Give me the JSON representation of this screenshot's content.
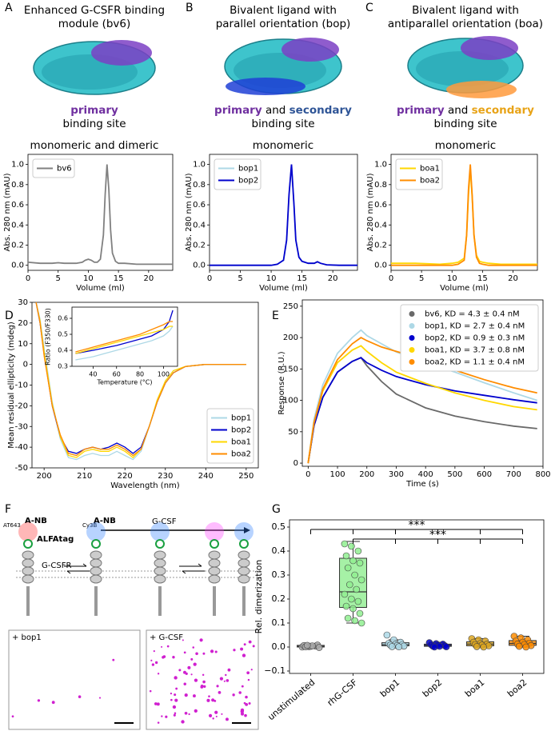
{
  "panel_letters": [
    "A",
    "B",
    "C",
    "D",
    "E",
    "F",
    "G"
  ],
  "chart_data": [
    {
      "type": "line",
      "header": [
        "Enhanced G-CSFR binding",
        "module (bv6)"
      ],
      "site_label": [
        [
          {
            "text": "primary",
            "color": "#7030a0"
          }
        ],
        [
          {
            "text": "binding site"
          }
        ]
      ],
      "title": "monomeric and dimeric",
      "xlabel": "Volume (ml)",
      "ylabel": "Abs. 280 nm (mAU)",
      "x": [
        0,
        2,
        4,
        5,
        6,
        8,
        9,
        9.5,
        10,
        10.5,
        11,
        11.5,
        12,
        12.5,
        12.8,
        13.1,
        13.4,
        13.7,
        14,
        14.5,
        15,
        16,
        18,
        20,
        22,
        24
      ],
      "series": [
        {
          "name": "bv6",
          "color": "#808080",
          "values": [
            0.03,
            0.02,
            0.02,
            0.025,
            0.02,
            0.02,
            0.03,
            0.05,
            0.06,
            0.05,
            0.03,
            0.03,
            0.06,
            0.3,
            0.7,
            1.0,
            0.75,
            0.35,
            0.12,
            0.04,
            0.02,
            0.02,
            0.01,
            0.01,
            0.01,
            0.01
          ]
        }
      ],
      "xlim": [
        0,
        24
      ],
      "ylim": [
        -0.05,
        1.1
      ],
      "xticks": [
        0,
        5,
        10,
        15,
        20
      ],
      "yticks": [
        {
          "value": 0,
          "label": "0.0"
        },
        0.2,
        0.4,
        0.6,
        0.8,
        {
          "value": 1,
          "label": "1.0"
        }
      ],
      "legend": "upper left"
    },
    {
      "type": "line",
      "header": [
        "Bivalent ligand with",
        "parallel orientation (bop)"
      ],
      "site_label": [
        [
          {
            "text": "primary",
            "color": "#7030a0"
          },
          {
            "text": "and"
          },
          {
            "text": "secondary",
            "color": "#2f5597"
          }
        ],
        [
          {
            "text": "binding site"
          }
        ]
      ],
      "title": "monomeric",
      "xlabel": "Volume (ml)",
      "ylabel": "Abs. 280 nm (mAU)",
      "x": [
        0,
        4,
        8,
        10,
        11,
        12,
        12.5,
        12.9,
        13.3,
        13.7,
        14,
        14.5,
        15,
        16,
        17,
        17.5,
        18,
        19,
        21,
        24
      ],
      "series": [
        {
          "name": "bop1",
          "color": "#add8e6",
          "values": [
            0,
            0,
            0,
            0,
            0.01,
            0.05,
            0.24,
            0.69,
            0.99,
            0.6,
            0.25,
            0.08,
            0.04,
            0.02,
            0.02,
            0.035,
            0.02,
            0.005,
            0,
            0
          ]
        },
        {
          "name": "bop2",
          "color": "#0000cd",
          "values": [
            0,
            0,
            0,
            0,
            0.01,
            0.05,
            0.25,
            0.7,
            1.0,
            0.6,
            0.25,
            0.08,
            0.04,
            0.02,
            0.02,
            0.035,
            0.02,
            0.005,
            0,
            0
          ]
        }
      ],
      "xlim": [
        0,
        24
      ],
      "ylim": [
        -0.05,
        1.1
      ],
      "xticks": [
        0,
        5,
        10,
        15,
        20
      ],
      "yticks": [
        {
          "value": 0,
          "label": "0.0"
        },
        0.2,
        0.4,
        0.6,
        0.8,
        {
          "value": 1,
          "label": "1.0"
        }
      ],
      "legend": "upper left"
    },
    {
      "type": "line",
      "header": [
        "Bivalent ligand with",
        "antiparallel orientation (boa)"
      ],
      "site_label": [
        [
          {
            "text": "primary",
            "color": "#7030a0"
          },
          {
            "text": "and"
          },
          {
            "text": "secondary",
            "color": "#e8a317"
          }
        ],
        [
          {
            "text": "binding site"
          }
        ]
      ],
      "title": "monomeric",
      "xlabel": "Volume (ml)",
      "ylabel": "Abs. 280 nm (mAU)",
      "x": [
        0,
        4,
        8,
        10,
        11,
        12,
        12.4,
        12.7,
        13,
        13.3,
        13.6,
        14,
        14.5,
        15,
        16,
        18,
        24
      ],
      "series": [
        {
          "name": "boa1",
          "color": "#ffd700",
          "values": [
            0.02,
            0.02,
            0.01,
            0.02,
            0.03,
            0.07,
            0.3,
            0.7,
            0.96,
            0.68,
            0.3,
            0.1,
            0.04,
            0.03,
            0.02,
            0.01,
            0.01
          ]
        },
        {
          "name": "boa2",
          "color": "#ff8c00",
          "values": [
            0,
            0,
            0,
            0,
            0.01,
            0.05,
            0.3,
            0.75,
            1.0,
            0.7,
            0.3,
            0.08,
            0.02,
            0.01,
            0,
            0,
            0
          ]
        }
      ],
      "xlim": [
        0,
        24
      ],
      "ylim": [
        -0.05,
        1.1
      ],
      "xticks": [
        0,
        5,
        10,
        15,
        20
      ],
      "yticks": [
        {
          "value": 0,
          "label": "0.0"
        },
        0.2,
        0.4,
        0.6,
        0.8,
        {
          "value": 1,
          "label": "1.0"
        }
      ],
      "legend": "upper left"
    },
    {
      "type": "line",
      "xlabel": "Wavelength (nm)",
      "ylabel": "Mean residual ellipticity (mdeg)",
      "x": [
        198,
        199,
        200,
        202,
        204,
        206,
        208,
        210,
        212,
        214,
        216,
        218,
        220,
        222,
        224,
        226,
        228,
        230,
        232,
        235,
        240,
        245,
        250
      ],
      "series": [
        {
          "name": "bop1",
          "color": "#add8e6",
          "values": [
            30,
            22,
            8,
            -18,
            -36,
            -45,
            -46,
            -44,
            -43,
            -44,
            -44,
            -42,
            -44,
            -46,
            -42,
            -30,
            -17,
            -8,
            -3,
            -1,
            0,
            0,
            0
          ]
        },
        {
          "name": "bop2",
          "color": "#0000cd",
          "values": [
            30,
            20,
            5,
            -20,
            -35,
            -42,
            -43,
            -41,
            -40,
            -41,
            -40,
            -38,
            -40,
            -43,
            -40,
            -30,
            -18,
            -9,
            -4,
            -1,
            0,
            0,
            0
          ]
        },
        {
          "name": "boa1",
          "color": "#ffd700",
          "values": [
            30,
            21,
            6,
            -19,
            -35,
            -44,
            -45,
            -42,
            -41,
            -42,
            -42,
            -40,
            -42,
            -45,
            -41,
            -30,
            -17,
            -8,
            -3,
            -1,
            0,
            0,
            0
          ]
        },
        {
          "name": "boa2",
          "color": "#ff8c00",
          "values": [
            30,
            20,
            4,
            -20,
            -34,
            -43,
            -44,
            -41,
            -40,
            -41,
            -41,
            -39,
            -41,
            -44,
            -41,
            -30,
            -18,
            -9,
            -4,
            -1,
            0,
            0,
            0
          ]
        }
      ],
      "xlim": [
        197,
        253
      ],
      "ylim": [
        -50,
        30
      ],
      "xticks": [
        200,
        210,
        220,
        230,
        240,
        250
      ],
      "yticks": [
        -50,
        -40,
        -30,
        -20,
        -10,
        0,
        10,
        20,
        30
      ],
      "legend": "lower right"
    },
    {
      "type": "line",
      "xlabel": "Temperature (°C)",
      "ylabel": "Ratio (F350/F330)",
      "x": [
        25,
        40,
        60,
        80,
        90,
        100,
        105,
        108
      ],
      "series": [
        {
          "name": "bop1",
          "color": "#add8e6",
          "values": [
            0.34,
            0.36,
            0.4,
            0.44,
            0.46,
            0.49,
            0.52,
            0.55
          ]
        },
        {
          "name": "bop2",
          "color": "#0000cd",
          "values": [
            0.38,
            0.4,
            0.43,
            0.47,
            0.49,
            0.53,
            0.58,
            0.65
          ]
        },
        {
          "name": "boa1",
          "color": "#ffd700",
          "values": [
            0.38,
            0.41,
            0.45,
            0.49,
            0.51,
            0.53,
            0.55,
            0.55
          ]
        },
        {
          "name": "boa2",
          "color": "#ff8c00",
          "values": [
            0.39,
            0.42,
            0.46,
            0.5,
            0.53,
            0.56,
            0.58,
            0.58
          ]
        }
      ],
      "xlim": [
        22,
        112
      ],
      "ylim": [
        0.3,
        0.67
      ],
      "xticks": [
        40,
        60,
        80,
        100
      ],
      "yticks": [
        0.3,
        0.4,
        0.5,
        0.6
      ]
    },
    {
      "type": "line",
      "xlabel": "Time (s)",
      "ylabel": "Response (R.U.)",
      "x": [
        0,
        20,
        50,
        100,
        150,
        180,
        200,
        250,
        300,
        400,
        500,
        600,
        700,
        780
      ],
      "series": [
        {
          "name": "bv6, KD = 4.3 ± 0.4 nM",
          "color": "#696969",
          "values": [
            0,
            60,
            105,
            145,
            162,
            168,
            155,
            130,
            110,
            88,
            75,
            66,
            59,
            55
          ]
        },
        {
          "name": "bop1, KD = 2.7 ± 0.4 nM",
          "color": "#add8e6",
          "values": [
            0,
            70,
            125,
            175,
            200,
            212,
            203,
            190,
            177,
            160,
            145,
            128,
            112,
            100
          ]
        },
        {
          "name": "bop2, KD = 0.9 ± 0.3 nM",
          "color": "#0000cd",
          "values": [
            0,
            60,
            105,
            145,
            162,
            168,
            160,
            148,
            138,
            125,
            115,
            108,
            101,
            96
          ]
        },
        {
          "name": "boa1, KD = 3.7 ± 0.8 nM",
          "color": "#ffd700",
          "values": [
            0,
            65,
            115,
            160,
            180,
            187,
            178,
            160,
            145,
            127,
            112,
            100,
            90,
            85
          ]
        },
        {
          "name": "boa2, KD = 1.1 ± 0.4 nM",
          "color": "#ff8c00",
          "values": [
            0,
            65,
            118,
            165,
            190,
            200,
            195,
            185,
            178,
            165,
            148,
            133,
            120,
            112
          ]
        }
      ],
      "xlim": [
        -20,
        800
      ],
      "ylim": [
        -5,
        260
      ],
      "xticks": [
        0,
        100,
        200,
        300,
        400,
        500,
        600,
        700,
        800
      ],
      "yticks": [
        0,
        50,
        100,
        150,
        200,
        250
      ],
      "legend": "upper right",
      "legend_marker": "circle"
    },
    {
      "type": "box",
      "ylabel": "Rel. dimerization",
      "categories": [
        "unstimulated",
        "rhG-CSF",
        "bop1",
        "bop2",
        "boa1",
        "boa2"
      ],
      "boxes": [
        {
          "color": "#a9a9a9",
          "whislo": -0.005,
          "q1": 0,
          "median": 0.003,
          "q3": 0.007,
          "whishi": 0.01,
          "points": [
            0.0,
            0.002,
            0.004,
            0.006,
            0.003,
            0.008,
            0.001,
            0.005,
            -0.002,
            0.007
          ]
        },
        {
          "color": "#90ee90",
          "whislo": 0.1,
          "q1": 0.165,
          "median": 0.23,
          "q3": 0.37,
          "whishi": 0.44,
          "points": [
            0.43,
            0.42,
            0.4,
            0.38,
            0.36,
            0.35,
            0.33,
            0.3,
            0.28,
            0.26,
            0.24,
            0.22,
            0.2,
            0.19,
            0.17,
            0.16,
            0.14,
            0.12,
            0.11,
            0.1
          ]
        },
        {
          "color": "#add8e6",
          "whislo": 0,
          "q1": 0.005,
          "median": 0.01,
          "q3": 0.018,
          "whishi": 0.03,
          "points": [
            0.05,
            0.03,
            0.02,
            0.015,
            0.012,
            0.01,
            0.008,
            0.006,
            0.004,
            0.002,
            0.001
          ]
        },
        {
          "color": "#0000cd",
          "whislo": 0,
          "q1": 0.003,
          "median": 0.007,
          "q3": 0.012,
          "whishi": 0.02,
          "points": [
            0.018,
            0.014,
            0.012,
            0.01,
            0.008,
            0.006,
            0.004,
            0.003,
            0.001,
            0.0
          ]
        },
        {
          "color": "#daa520",
          "whislo": 0,
          "q1": 0.005,
          "median": 0.012,
          "q3": 0.022,
          "whishi": 0.035,
          "points": [
            0.035,
            0.03,
            0.025,
            0.02,
            0.015,
            0.012,
            0.01,
            0.008,
            0.005,
            0.002,
            0.0
          ]
        },
        {
          "color": "#ff8c00",
          "whislo": 0,
          "q1": 0.007,
          "median": 0.015,
          "q3": 0.027,
          "whishi": 0.045,
          "points": [
            0.045,
            0.038,
            0.03,
            0.025,
            0.02,
            0.015,
            0.012,
            0.01,
            0.006,
            0.003,
            0.0
          ]
        }
      ],
      "significance": [
        {
          "label": "***",
          "y": 0.49,
          "between": [
            0,
            5
          ]
        },
        {
          "label": "***",
          "y": 0.45,
          "between": [
            1,
            5
          ]
        }
      ],
      "ylim": [
        -0.11,
        0.53
      ],
      "yticks": [
        {
          "value": -0.1,
          "label": "−0.1"
        },
        {
          "value": 0,
          "label": "0.0"
        },
        0.1,
        0.2,
        0.3,
        0.4,
        0.5
      ]
    }
  ],
  "diagram": {
    "labels": [
      "AT643",
      "A-NB",
      "Cy3B",
      "A-NB",
      "ALFAtag",
      "G-CSF",
      "G-CSFR"
    ],
    "micrographs": [
      "+ bop1",
      "+ G-CSF"
    ]
  }
}
